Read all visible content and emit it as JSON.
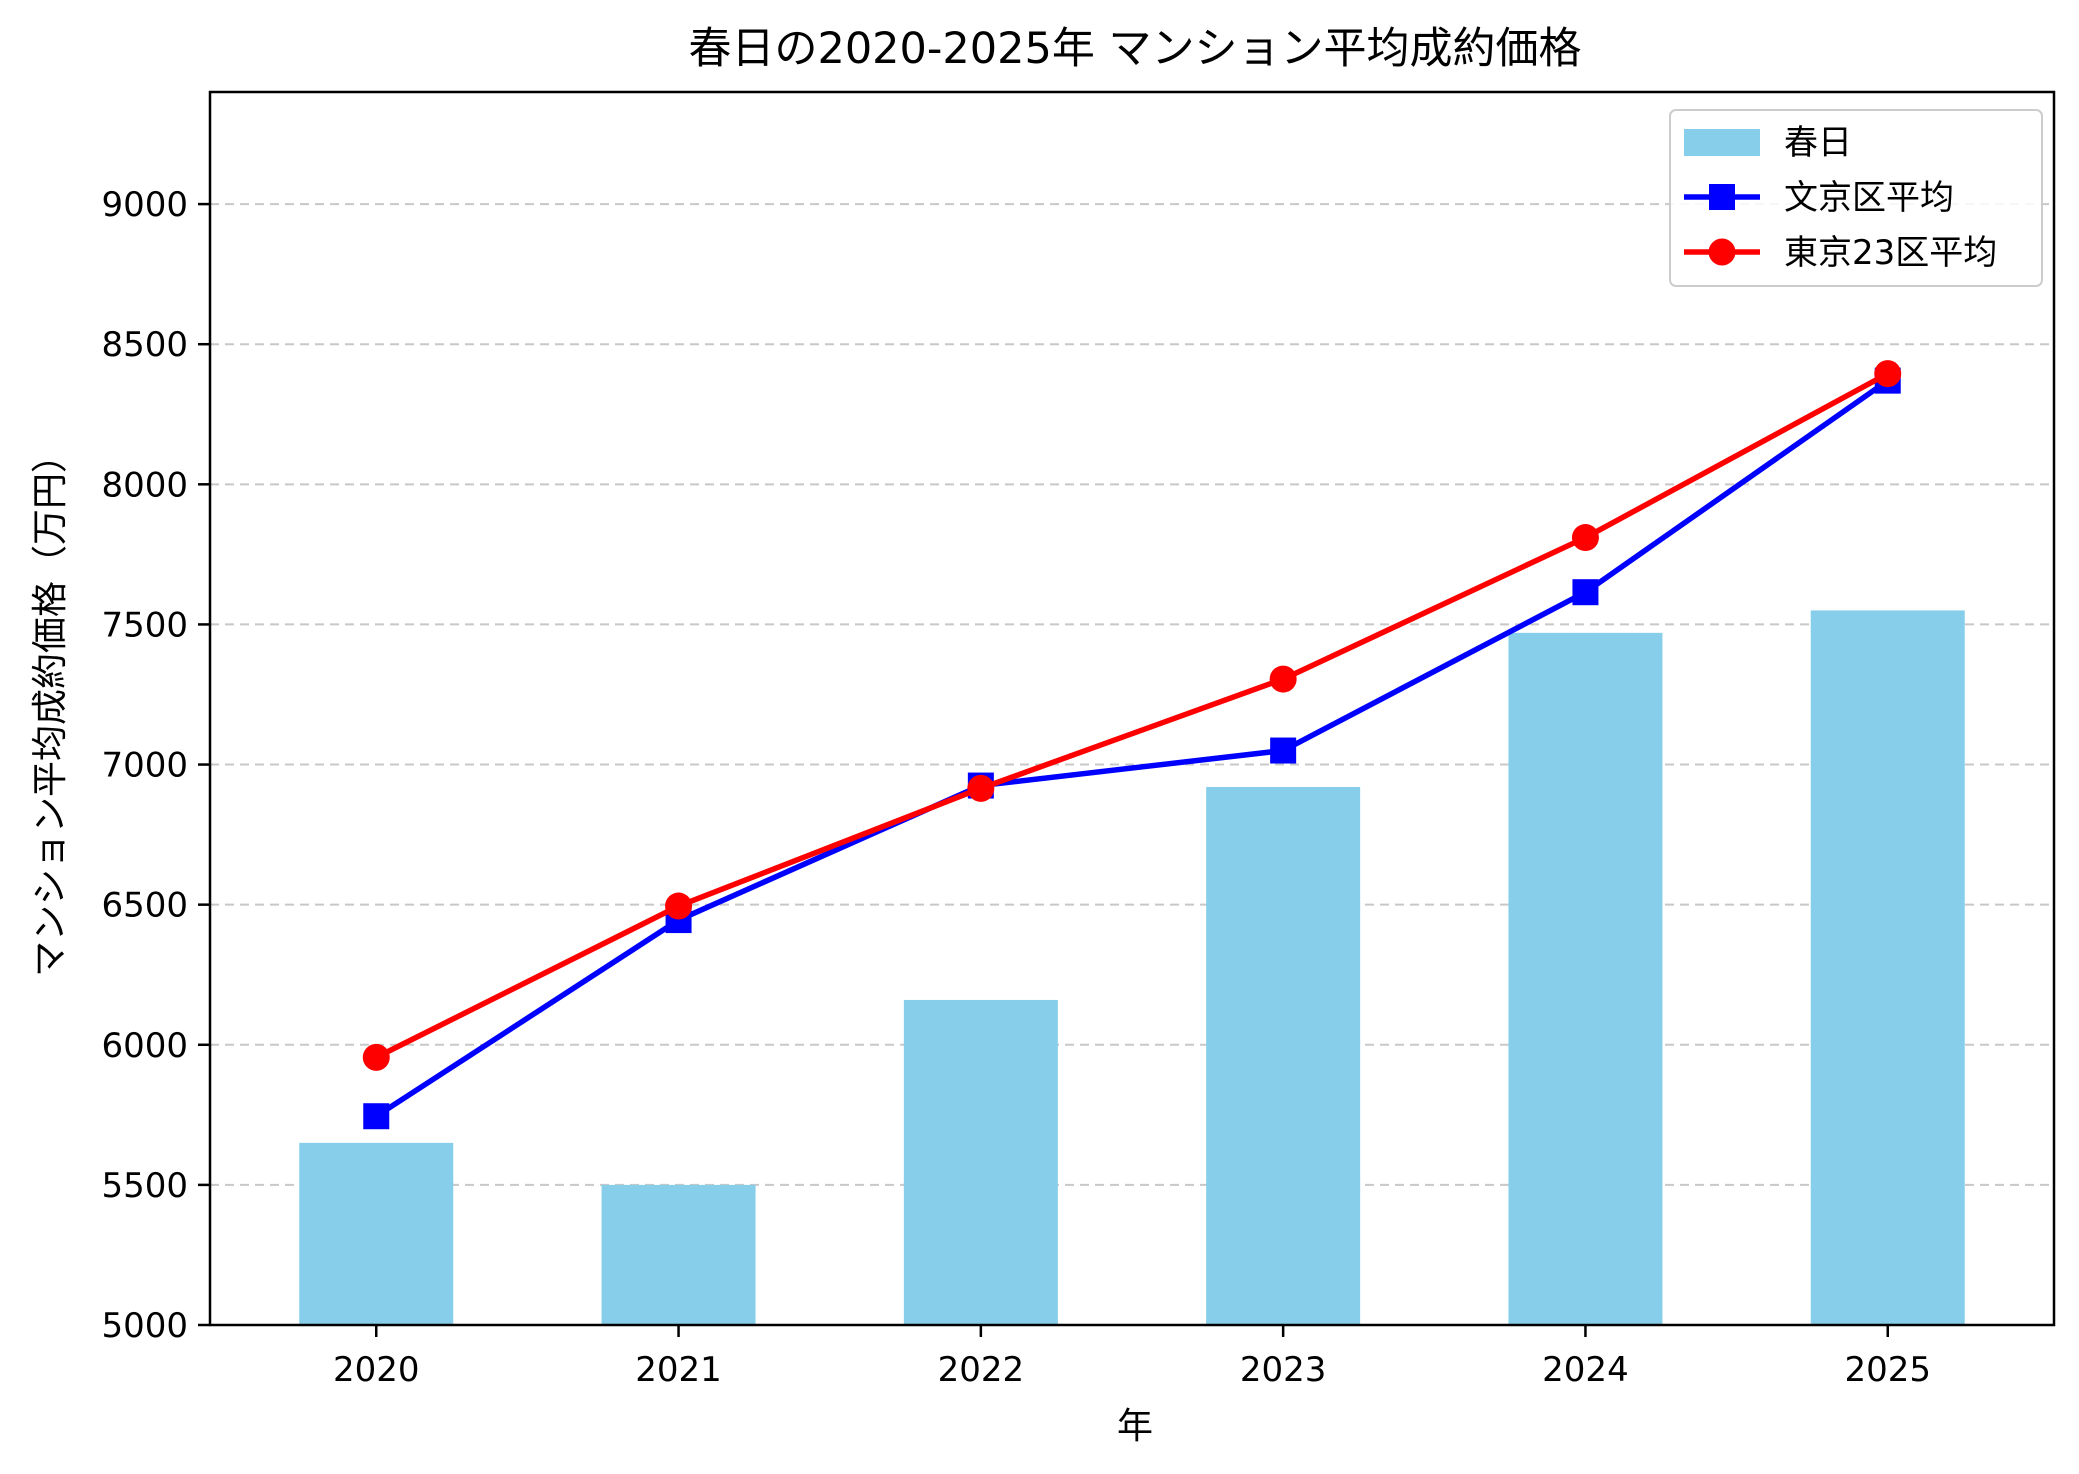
{
  "chart_data": {
    "type": "bar",
    "title": "春日の2020-2025年 マンション平均成約価格",
    "xlabel": "年",
    "ylabel": "マンション平均成約価格（万円）",
    "categories": [
      "2020",
      "2021",
      "2022",
      "2023",
      "2024",
      "2025"
    ],
    "ylim": [
      5000,
      9400
    ],
    "yticks": [
      5000,
      5500,
      6000,
      6500,
      7000,
      7500,
      8000,
      8500,
      9000
    ],
    "grid": "y-dashed",
    "legend_position": "top-right",
    "series": [
      {
        "name": "春日",
        "type": "bar",
        "color": "#87CEEB",
        "values": [
          5650,
          5500,
          6160,
          6920,
          7470,
          7550
        ]
      },
      {
        "name": "文京区平均",
        "type": "line",
        "marker": "square",
        "color": "#0000FF",
        "values": [
          5745,
          6445,
          6925,
          7050,
          7615,
          8370
        ]
      },
      {
        "name": "東京23区平均",
        "type": "line",
        "marker": "circle",
        "color": "#FF0000",
        "values": [
          5955,
          6495,
          6915,
          7305,
          7810,
          8395
        ]
      }
    ]
  }
}
